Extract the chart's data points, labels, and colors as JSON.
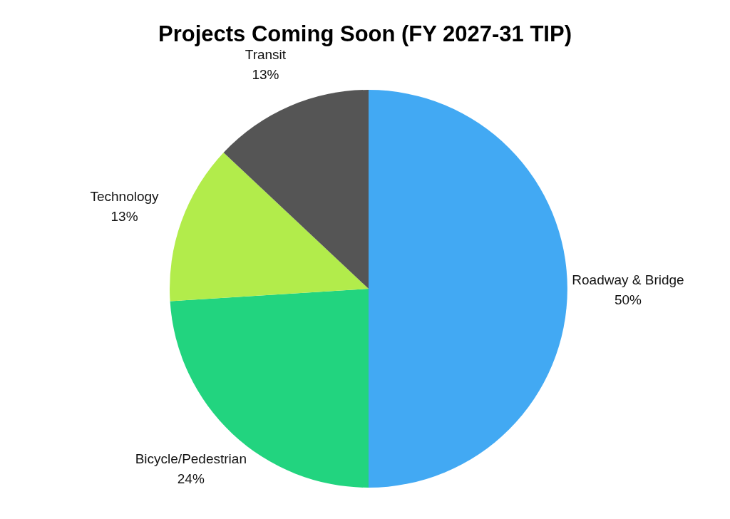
{
  "chart_data": {
    "type": "pie",
    "title": "Projects Coming Soon (FY 2027-31 TIP)",
    "categories": [
      "Roadway & Bridge",
      "Bicycle/Pedestrian",
      "Technology",
      "Transit"
    ],
    "values": [
      50,
      24,
      13,
      13
    ],
    "colors": [
      "#42a9f3",
      "#22d47f",
      "#b2ec4b",
      "#555555"
    ],
    "value_labels": [
      "50%",
      "24%",
      "13%",
      "13%"
    ],
    "legend": false
  }
}
